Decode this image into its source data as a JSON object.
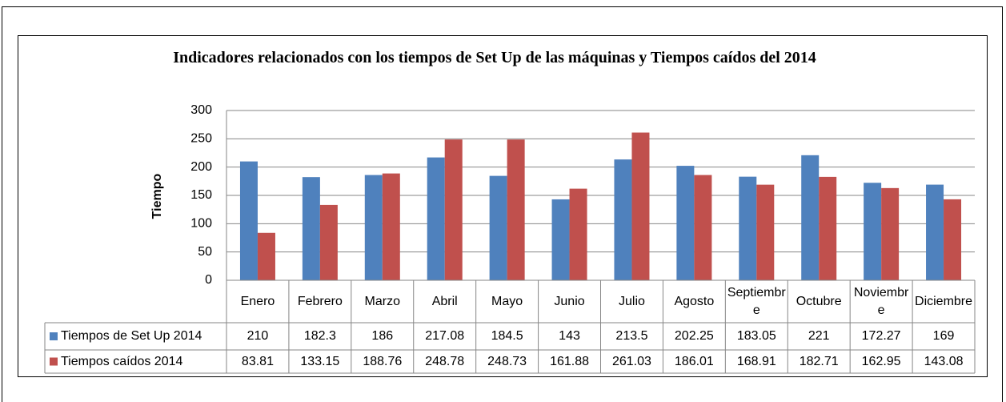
{
  "chart_data": {
    "type": "bar",
    "title": "Indicadores relacionados con los tiempos de Set Up de las máquinas y Tiempos caídos del 2014",
    "ylabel": "Tiempo",
    "categories": [
      "Enero",
      "Febrero",
      "Marzo",
      "Abril",
      "Mayo",
      "Junio",
      "Julio",
      "Agosto",
      "Septiembre",
      "Octubre",
      "Noviembre",
      "Diciembre"
    ],
    "series": [
      {
        "name": "Tiempos de Set Up 2014",
        "color": "#4f81bd",
        "values": [
          210,
          182.3,
          186,
          217.08,
          184.5,
          143,
          213.5,
          202.25,
          183.05,
          221,
          172.27,
          169
        ]
      },
      {
        "name": "Tiempos caídos 2014",
        "color": "#c0504d",
        "values": [
          83.81,
          133.15,
          188.76,
          248.78,
          248.73,
          161.88,
          261.03,
          186.01,
          168.91,
          182.71,
          162.95,
          143.08
        ]
      }
    ],
    "ylim": [
      0,
      300
    ],
    "yticks": [
      0,
      50,
      100,
      150,
      200,
      250,
      300
    ],
    "grid": true,
    "data_table": true
  }
}
